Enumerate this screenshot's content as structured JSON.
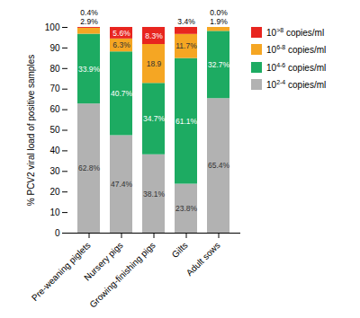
{
  "chart_data": {
    "type": "bar",
    "stacked": true,
    "data_labels": true,
    "grid": false,
    "legend": "right",
    "categories": [
      "Pre-weaning piglets",
      "Nursery pigs",
      "Growing-finishing pigs",
      "Gilts",
      "Adult sows"
    ],
    "series": [
      {
        "name": "102-4 copies/ml",
        "color": "#b2b2b2",
        "values": [
          62.8,
          47.4,
          38.1,
          23.8,
          65.4
        ],
        "value_labels": [
          "62.8%",
          "47.4%",
          "38.1%",
          "23.8%",
          "65.4%"
        ]
      },
      {
        "name": "104-6 copies/ml",
        "color": "#1dab62",
        "values": [
          33.9,
          40.7,
          34.7,
          61.1,
          32.7
        ],
        "value_labels": [
          "33.9%",
          "40.7%",
          "34.7%",
          "61.1%",
          "32.7%"
        ]
      },
      {
        "name": "106-8 copies/ml",
        "color": "#f5a623",
        "values": [
          2.9,
          6.3,
          18.9,
          11.7,
          1.9
        ],
        "value_labels": [
          "2.9%",
          "6.3%",
          "18.9",
          "11.7%",
          "1.9%"
        ]
      },
      {
        "name": "10>8 copies/ml",
        "color": "#e8251f",
        "values": [
          0.4,
          5.6,
          8.3,
          3.4,
          0.0
        ],
        "value_labels": [
          "0.4%",
          "5.6%",
          "8.3%",
          "3.4%",
          "0.0%"
        ]
      }
    ],
    "ylabel": "% PCV2 viral load of positive samples",
    "ylim": [
      0,
      100
    ],
    "yticks": [
      0,
      10,
      20,
      30,
      40,
      50,
      60,
      70,
      80,
      90,
      100
    ]
  }
}
